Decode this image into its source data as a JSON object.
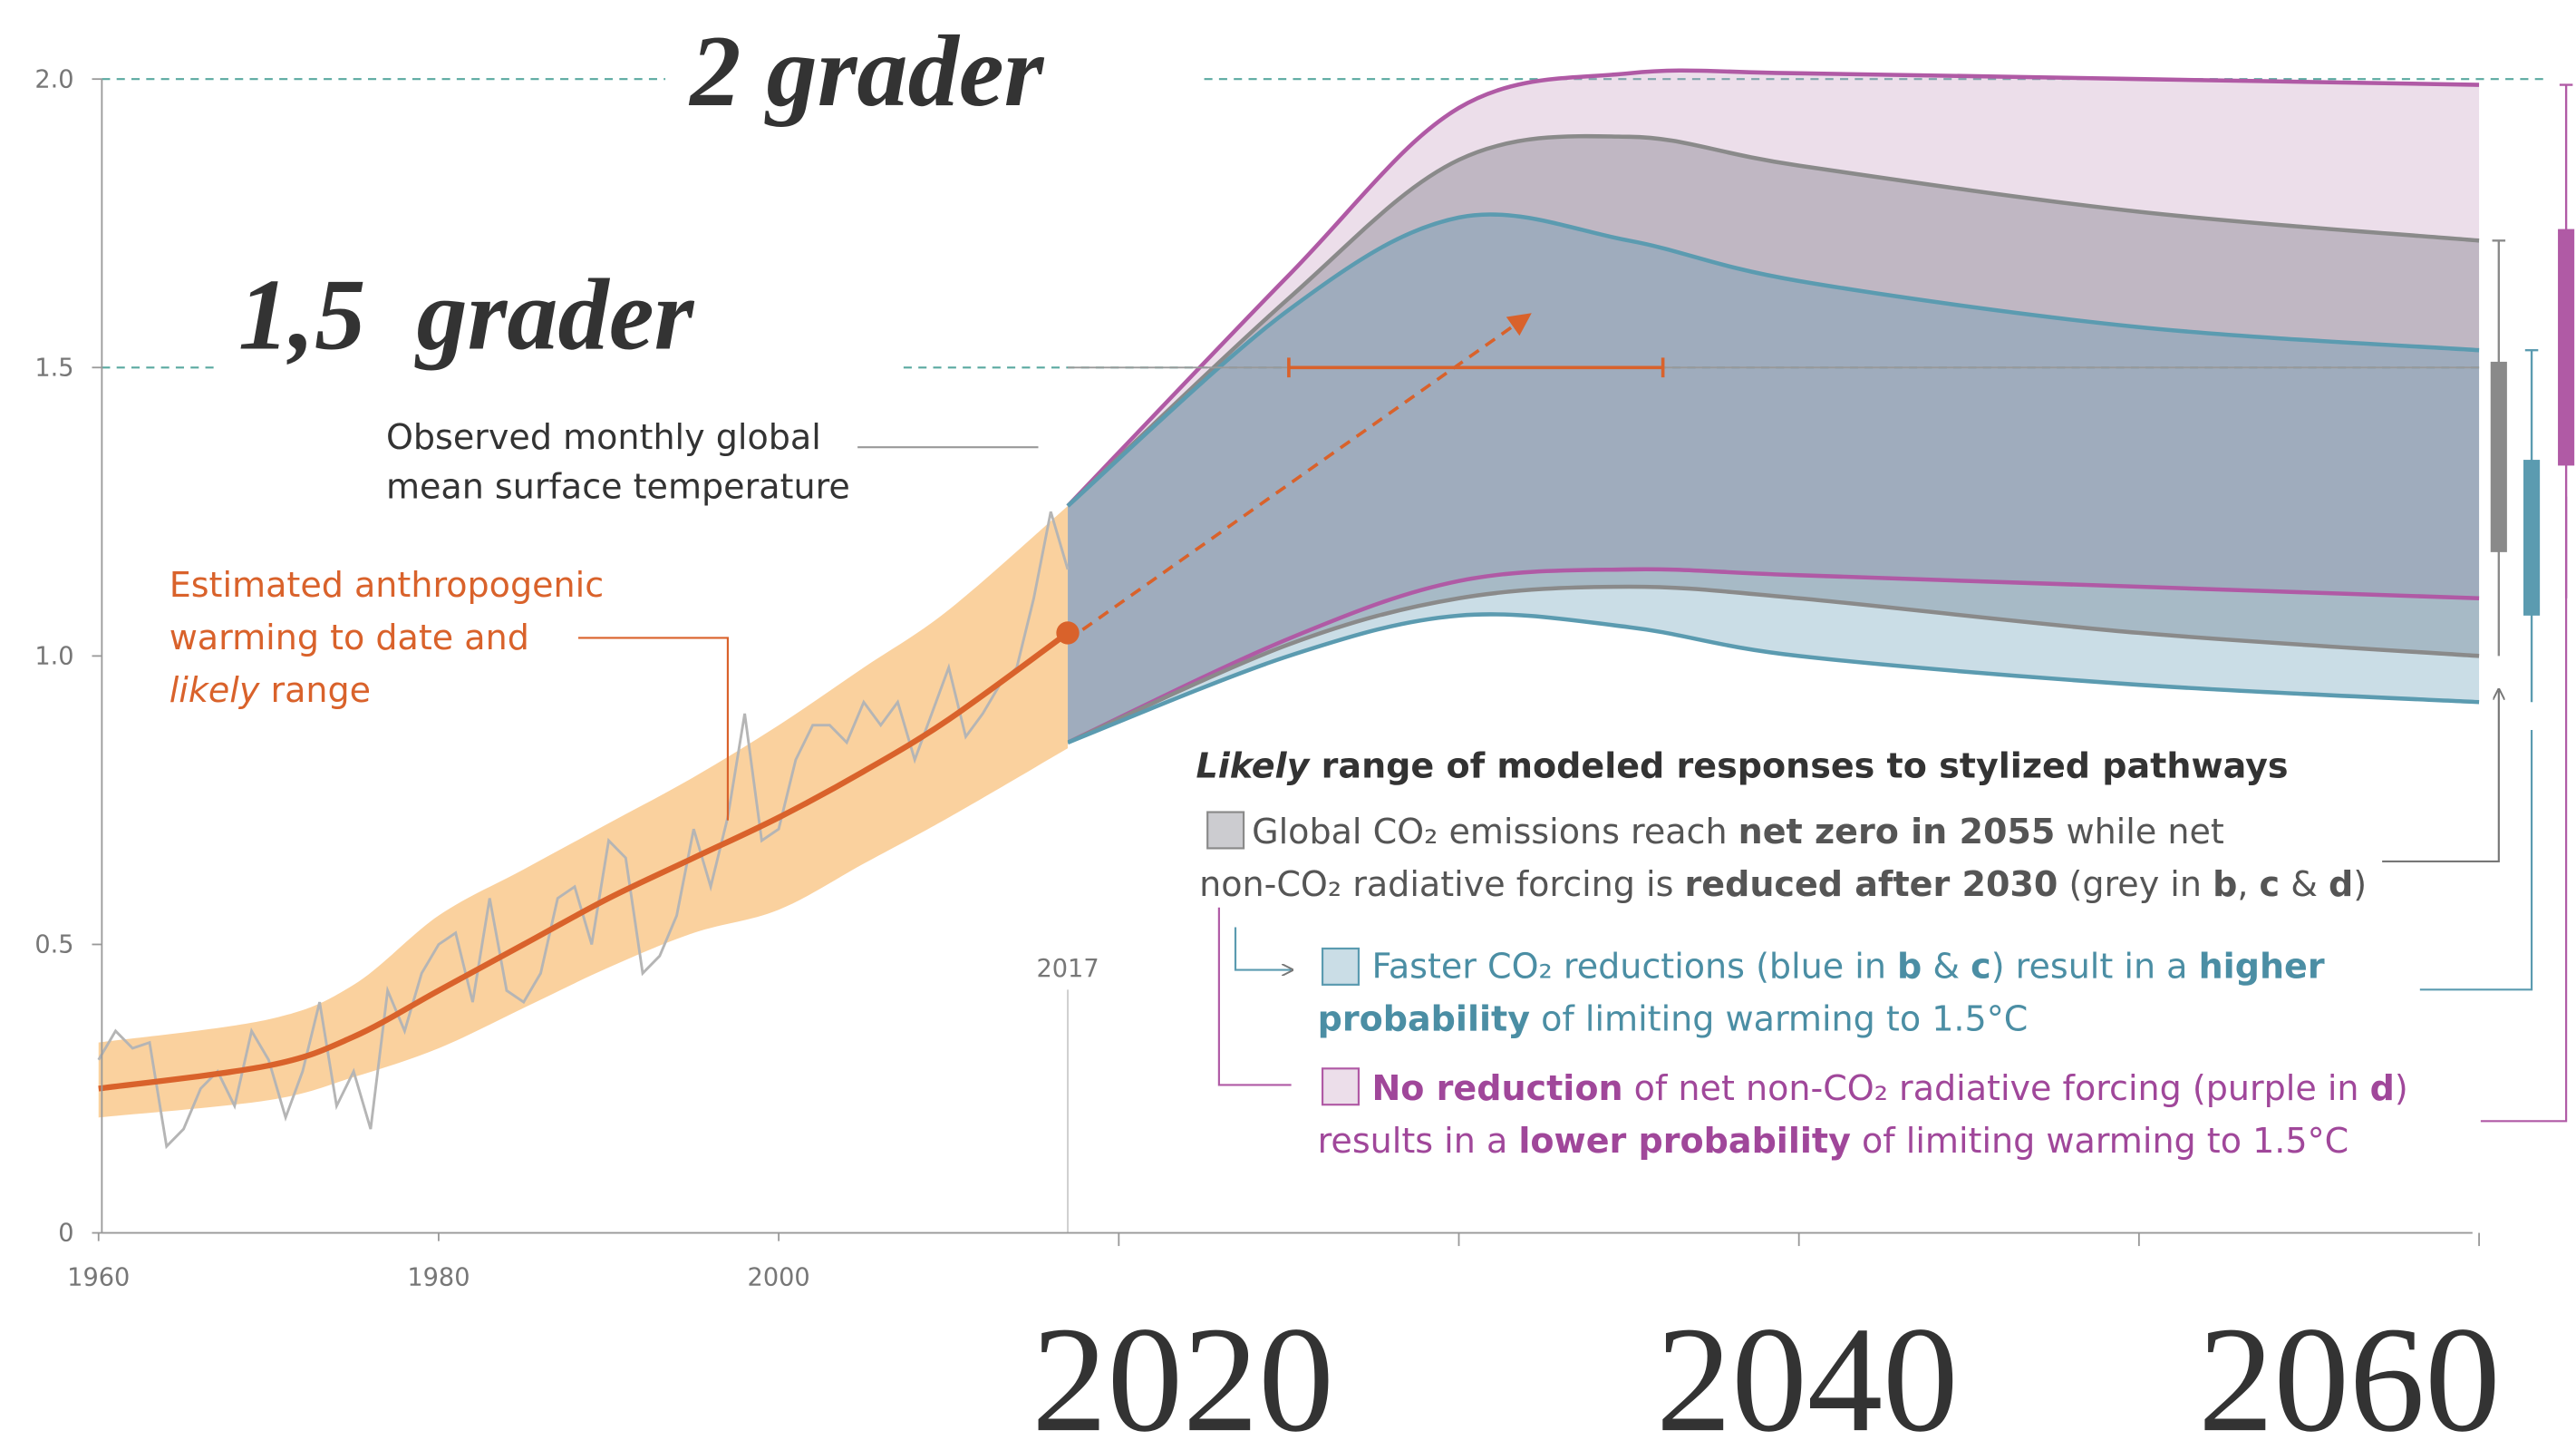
{
  "chart_data": {
    "type": "line",
    "xlim": [
      1960,
      2100
    ],
    "ylim": [
      0,
      2.0
    ],
    "xticks": [
      1960,
      1980,
      2000
    ],
    "xticks_unlabeled": [
      2020,
      2040,
      2060,
      2080,
      2100
    ],
    "yticks": [
      0,
      0.5,
      {
        "value": 1.0,
        "label": "1.0"
      },
      1.5,
      {
        "value": 2.0,
        "label": "2.0"
      }
    ],
    "hlines": [
      2.0,
      1.5
    ],
    "two_degrees": "2 grader",
    "one_five_degrees": "1,5  grader",
    "overlay_years": [
      "2020",
      "2040",
      "2060"
    ],
    "series": [
      {
        "name": [
          "Observed monthly global",
          "mean surface temperature"
        ],
        "color": "#b5b5b5",
        "x": [
          1960,
          1961,
          1962,
          1963,
          1964,
          1965,
          1966,
          1967,
          1968,
          1969,
          1970,
          1971,
          1972,
          1973,
          1974,
          1975,
          1976,
          1977,
          1978,
          1979,
          1980,
          1981,
          1982,
          1983,
          1984,
          1985,
          1986,
          1987,
          1988,
          1989,
          1990,
          1991,
          1992,
          1993,
          1994,
          1995,
          1996,
          1997,
          1998,
          1999,
          2000,
          2001,
          2002,
          2003,
          2004,
          2005,
          2006,
          2007,
          2008,
          2009,
          2010,
          2011,
          2012,
          2013,
          2014,
          2015,
          2016,
          2017
        ],
        "values": [
          0.3,
          0.35,
          0.32,
          0.33,
          0.15,
          0.18,
          0.25,
          0.28,
          0.22,
          0.35,
          0.3,
          0.2,
          0.28,
          0.4,
          0.22,
          0.28,
          0.18,
          0.42,
          0.35,
          0.45,
          0.5,
          0.52,
          0.4,
          0.58,
          0.42,
          0.4,
          0.45,
          0.58,
          0.6,
          0.5,
          0.68,
          0.65,
          0.45,
          0.48,
          0.55,
          0.7,
          0.6,
          0.72,
          0.9,
          0.68,
          0.7,
          0.82,
          0.88,
          0.88,
          0.85,
          0.92,
          0.88,
          0.92,
          0.82,
          0.9,
          0.98,
          0.86,
          0.9,
          0.95,
          0.98,
          1.1,
          1.25,
          1.15
        ]
      },
      {
        "name": [
          [
            {
              "text": "Estimated anthropogenic"
            }
          ],
          [
            {
              "text": "warming to date and"
            }
          ],
          [
            {
              "text": "likely",
              "italic": true
            },
            {
              "text": " range"
            }
          ]
        ],
        "color": "#d9622b",
        "band_color": "#f9c98d",
        "x": [
          1960,
          1970,
          1975,
          1980,
          1985,
          1990,
          1995,
          2000,
          2005,
          2010,
          2017
        ],
        "values": [
          0.25,
          0.29,
          0.34,
          0.42,
          0.5,
          0.58,
          0.65,
          0.72,
          0.8,
          0.89,
          1.04
        ],
        "lower": [
          0.2,
          0.23,
          0.27,
          0.32,
          0.39,
          0.46,
          0.52,
          0.56,
          0.64,
          0.72,
          0.84
        ],
        "upper": [
          0.33,
          0.37,
          0.43,
          0.55,
          0.63,
          0.71,
          0.79,
          0.88,
          0.98,
          1.08,
          1.26
        ]
      }
    ],
    "range_at_threshold": {
      "value": 1.5,
      "x": [
        2030,
        2052
      ],
      "color": "#d9622b"
    },
    "legend_title": [
      {
        "text": "Likely",
        "italic": true
      },
      {
        "text": " range of modeled responses to stylized pathways"
      }
    ],
    "bands": [
      {
        "color": "#8a8a8a",
        "fill": "rgba(120,120,132,0.38)",
        "text_color": "#555555",
        "x": [
          2017,
          2030,
          2040,
          2050,
          2060,
          2080,
          2100
        ],
        "upper": [
          1.26,
          1.62,
          1.86,
          1.9,
          1.85,
          1.77,
          1.72
        ],
        "lower": [
          0.85,
          1.02,
          1.1,
          1.12,
          1.1,
          1.04,
          1.0
        ],
        "bar": [
          1.18,
          1.51
        ],
        "legend": [
          [
            {
              "text": "Global CO₂ emissions reach "
            },
            {
              "text": "net zero in 2055",
              "bold": true
            },
            {
              "text": " while net"
            }
          ],
          [
            {
              "text": "non-CO₂ radiative forcing is "
            },
            {
              "text": "reduced after 2030",
              "bold": true
            },
            {
              "text": " (grey in "
            },
            {
              "text": "b",
              "bold": true
            },
            {
              "text": ", "
            },
            {
              "text": "c",
              "bold": true
            },
            {
              "text": " & "
            },
            {
              "text": "d",
              "bold": true
            },
            {
              "text": ")"
            }
          ]
        ]
      },
      {
        "color": "#5b9bb0",
        "fill": "rgba(90,150,178,0.32)",
        "text_color": "#4b8ea4",
        "x": [
          2017,
          2030,
          2040,
          2050,
          2060,
          2080,
          2100
        ],
        "upper": [
          1.26,
          1.6,
          1.76,
          1.72,
          1.65,
          1.57,
          1.53
        ],
        "lower": [
          0.85,
          1.0,
          1.07,
          1.05,
          1.0,
          0.95,
          0.92
        ],
        "bar": [
          1.07,
          1.34
        ],
        "legend": [
          [
            {
              "text": "Faster CO₂ reductions (blue in "
            },
            {
              "text": "b",
              "bold": true
            },
            {
              "text": " & "
            },
            {
              "text": "c",
              "bold": true
            },
            {
              "text": ") result in a "
            },
            {
              "text": "higher",
              "bold": true
            }
          ],
          [
            {
              "text": "probability",
              "bold": true
            },
            {
              "text": " of limiting warming to 1.5°C"
            }
          ]
        ]
      },
      {
        "color": "#b05aa5",
        "fill": "rgba(200,160,196,0.35)",
        "text_color": "#a0479a",
        "x": [
          2017,
          2030,
          2040,
          2050,
          2060,
          2080,
          2100
        ],
        "upper": [
          1.26,
          1.66,
          1.95,
          2.01,
          2.01,
          2.0,
          1.99
        ],
        "lower": [
          0.85,
          1.03,
          1.13,
          1.15,
          1.14,
          1.12,
          1.1
        ],
        "bar": [
          1.33,
          1.74
        ],
        "legend": [
          [
            {
              "text": "No reduction",
              "bold": true
            },
            {
              "text": " of net non-CO₂ radiative forcing (purple in "
            },
            {
              "text": "d",
              "bold": true
            },
            {
              "text": ")"
            }
          ],
          [
            {
              "text": "results in a "
            },
            {
              "text": "lower probability",
              "bold": true
            },
            {
              "text": " of limiting warming to 1.5°C"
            }
          ]
        ]
      }
    ]
  }
}
